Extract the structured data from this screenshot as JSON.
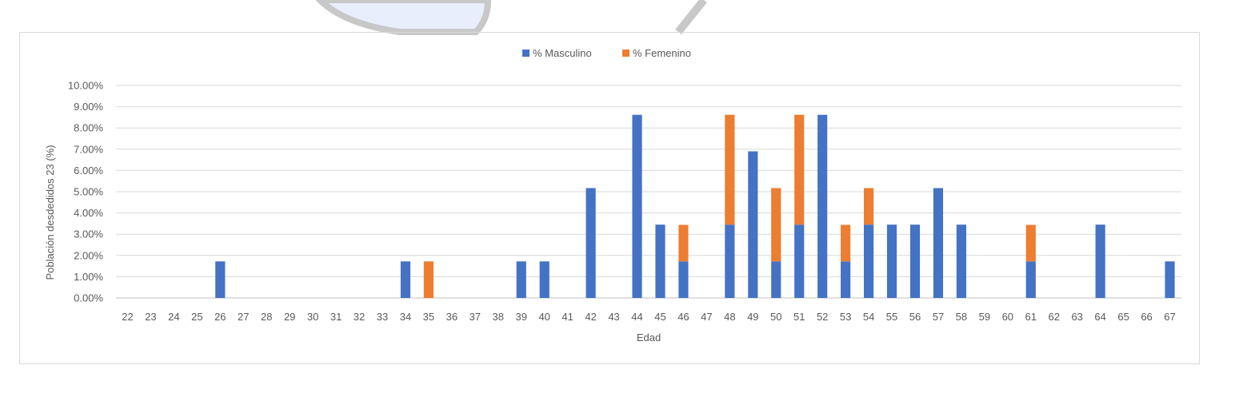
{
  "chart_data": {
    "type": "bar",
    "stacked": true,
    "xlabel": "Edad",
    "ylabel": "Población desdedidos 23 (%)",
    "ylim": [
      0,
      10
    ],
    "ytick_labels": [
      "0.00%",
      "1.00%",
      "2.00%",
      "3.00%",
      "4.00%",
      "5.00%",
      "6.00%",
      "7.00%",
      "8.00%",
      "9.00%",
      "10.00%"
    ],
    "legend_position": "top-center",
    "grid": true,
    "categories": [
      "22",
      "23",
      "24",
      "25",
      "26",
      "27",
      "28",
      "29",
      "30",
      "31",
      "32",
      "33",
      "34",
      "35",
      "36",
      "37",
      "38",
      "39",
      "40",
      "41",
      "42",
      "43",
      "44",
      "45",
      "46",
      "47",
      "48",
      "49",
      "50",
      "51",
      "52",
      "53",
      "54",
      "55",
      "56",
      "57",
      "58",
      "59",
      "60",
      "61",
      "62",
      "63",
      "64",
      "65",
      "66",
      "67"
    ],
    "series": [
      {
        "name": "% Masculino",
        "color": "#4472c4",
        "values": [
          0,
          0,
          0,
          0,
          1.72,
          0,
          0,
          0,
          0,
          0,
          0,
          0,
          1.72,
          0,
          0,
          0,
          0,
          1.72,
          1.72,
          0,
          5.17,
          0,
          8.62,
          3.45,
          1.72,
          0,
          3.45,
          6.9,
          1.72,
          3.45,
          8.62,
          1.72,
          3.45,
          3.45,
          3.45,
          5.17,
          3.45,
          0,
          0,
          1.72,
          0,
          0,
          3.45,
          0,
          0,
          1.72
        ]
      },
      {
        "name": "% Femenino",
        "color": "#ed7d31",
        "values": [
          0,
          0,
          0,
          0,
          0,
          0,
          0,
          0,
          0,
          0,
          0,
          0,
          0,
          1.72,
          0,
          0,
          0,
          0,
          0,
          0,
          0,
          0,
          0,
          0,
          1.72,
          0,
          5.17,
          0,
          3.45,
          5.17,
          0,
          1.72,
          1.72,
          0,
          0,
          0,
          0,
          0,
          0,
          1.72,
          0,
          0,
          0,
          0,
          0,
          0
        ]
      }
    ]
  }
}
